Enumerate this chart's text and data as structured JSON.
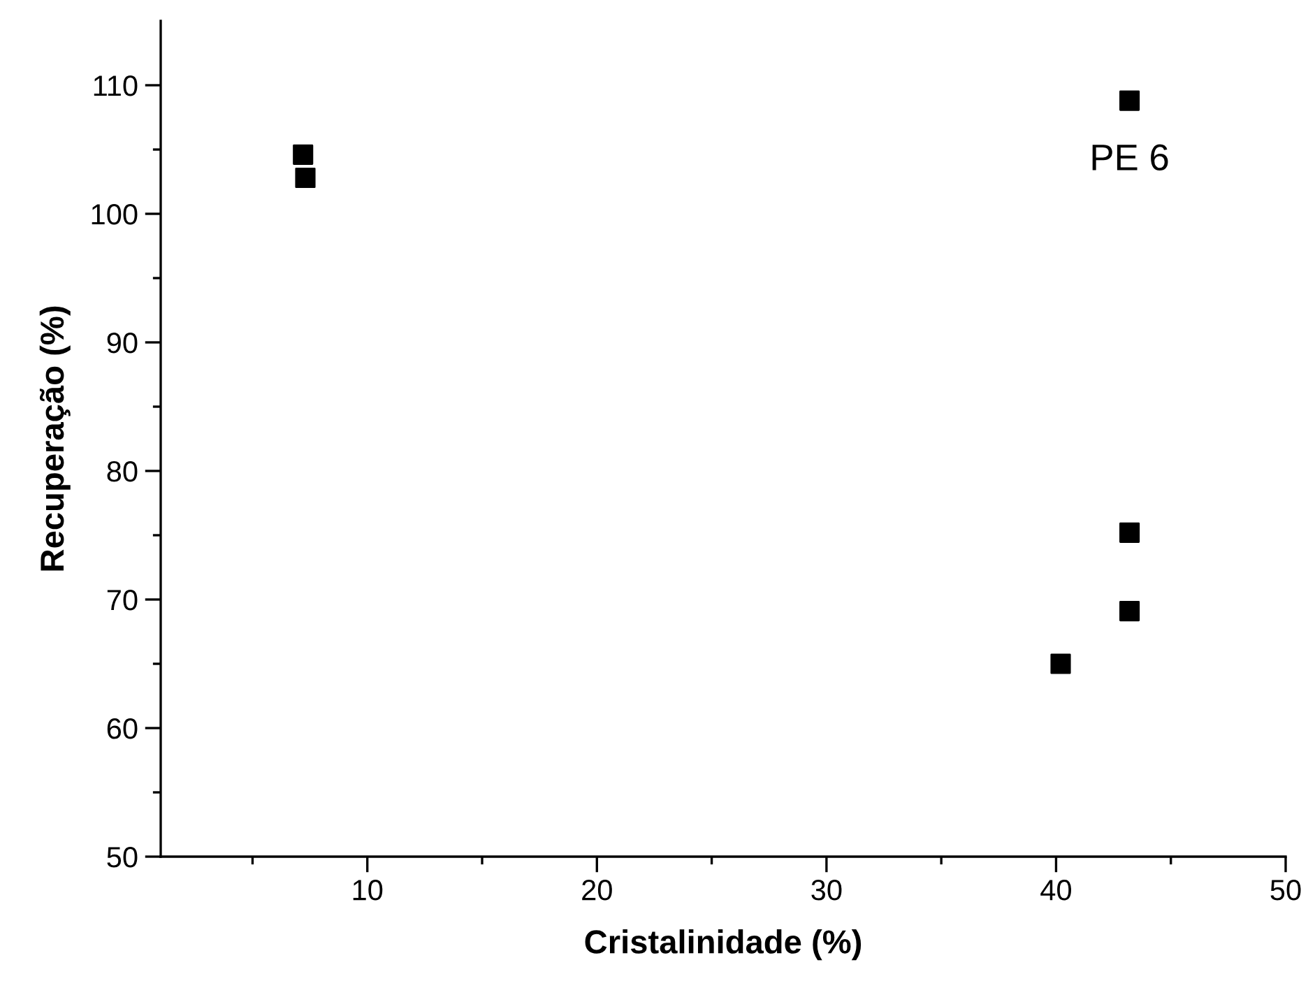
{
  "chart_data": {
    "type": "scatter",
    "xlabel": "Cristalinidade (%)",
    "ylabel": "Recuperação (%)",
    "x": [
      7.2,
      7.3,
      43.2,
      43.2,
      43.2,
      40.2
    ],
    "values": [
      104.6,
      102.8,
      108.8,
      75.2,
      69.1,
      65.0
    ],
    "color": "#000000",
    "marker": "square",
    "xlim": [
      1,
      50
    ],
    "ylim": [
      50,
      115
    ],
    "xticks": [
      {
        "value": 5,
        "label": null
      },
      10,
      {
        "value": 15,
        "label": null
      },
      20,
      {
        "value": 25,
        "label": null
      },
      30,
      {
        "value": 35,
        "label": null
      },
      40,
      {
        "value": 45,
        "label": null
      },
      50
    ],
    "yticks": [
      50,
      {
        "value": 55,
        "label": null
      },
      60,
      {
        "value": 65,
        "label": null
      },
      70,
      {
        "value": 75,
        "label": null
      },
      80,
      {
        "value": 85,
        "label": null
      },
      90,
      {
        "value": 95,
        "label": null
      },
      100,
      {
        "value": 105,
        "label": null
      },
      110
    ],
    "annotations": [
      {
        "text": "PE 6",
        "x": 43.2,
        "y": 108.8
      }
    ],
    "grid": false,
    "legend": false
  }
}
